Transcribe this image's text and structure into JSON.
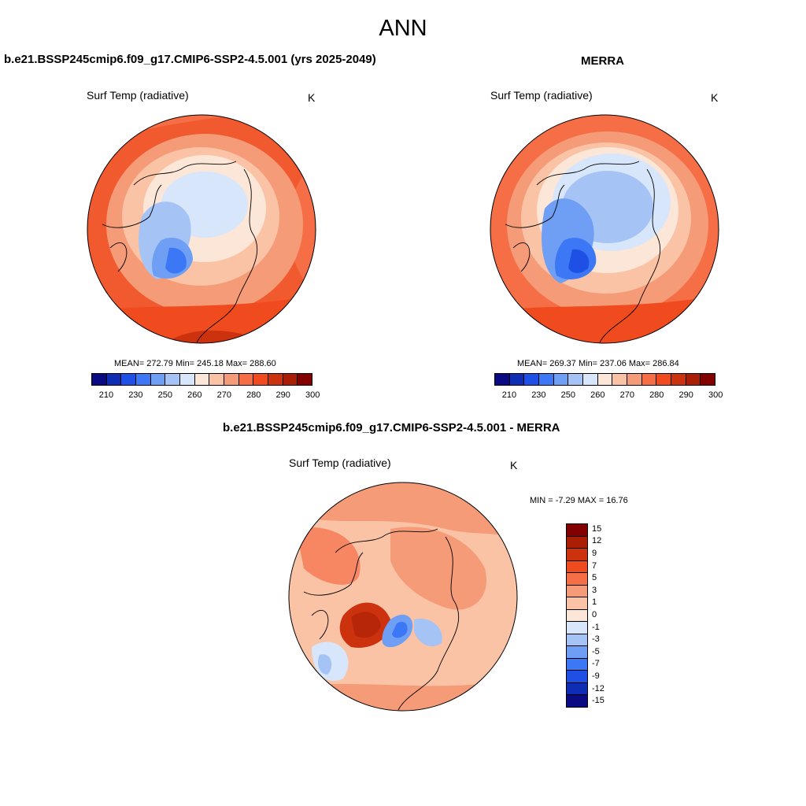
{
  "title": "ANN",
  "panel1": {
    "title": "b.e21.BSSP245cmip6.f09_g17.CMIP6-SSP2-4.5.001 (yrs 2025-2049)",
    "var_label": "Surf Temp (radiative)",
    "units": "K",
    "stats": "MEAN= 272.79  Min= 245.18  Max= 288.60"
  },
  "panel2": {
    "title": "MERRA",
    "var_label": "Surf Temp (radiative)",
    "units": "K",
    "stats": "MEAN= 269.37  Min= 237.06  Max= 286.84"
  },
  "panel3": {
    "title": "b.e21.BSSP245cmip6.f09_g17.CMIP6-SSP2-4.5.001 - MERRA",
    "var_label": "Surf Temp (radiative)",
    "units": "K",
    "minmax": "MIN =  -7.29 MAX =  16.76"
  },
  "abs_colorbar": {
    "colors": [
      "#0a0a82",
      "#0f2db4",
      "#1e50e6",
      "#3c78f5",
      "#6e9ff5",
      "#a5c3f5",
      "#d7e6fa",
      "#fbe6d7",
      "#fac3a5",
      "#f59b78",
      "#f56e46",
      "#ef4b1e",
      "#cd320f",
      "#aa1e05",
      "#820000"
    ],
    "ticks": [
      "210",
      "230",
      "250",
      "260",
      "270",
      "280",
      "290",
      "300"
    ]
  },
  "diff_colorbar": {
    "colors": [
      "#820000",
      "#aa1e05",
      "#cd320f",
      "#f04b1e",
      "#f56e46",
      "#f59b78",
      "#fac3a5",
      "#fbe6d7",
      "#d7e6fa",
      "#a5c3f5",
      "#6e9ff5",
      "#3c78f5",
      "#1e50e6",
      "#0f2db4",
      "#0a0a82"
    ],
    "ticks": [
      "15",
      "12",
      "9",
      "7",
      "5",
      "3",
      "1",
      "0",
      "-1",
      "-3",
      "-5",
      "-7",
      "-9",
      "-12",
      "-15"
    ]
  }
}
